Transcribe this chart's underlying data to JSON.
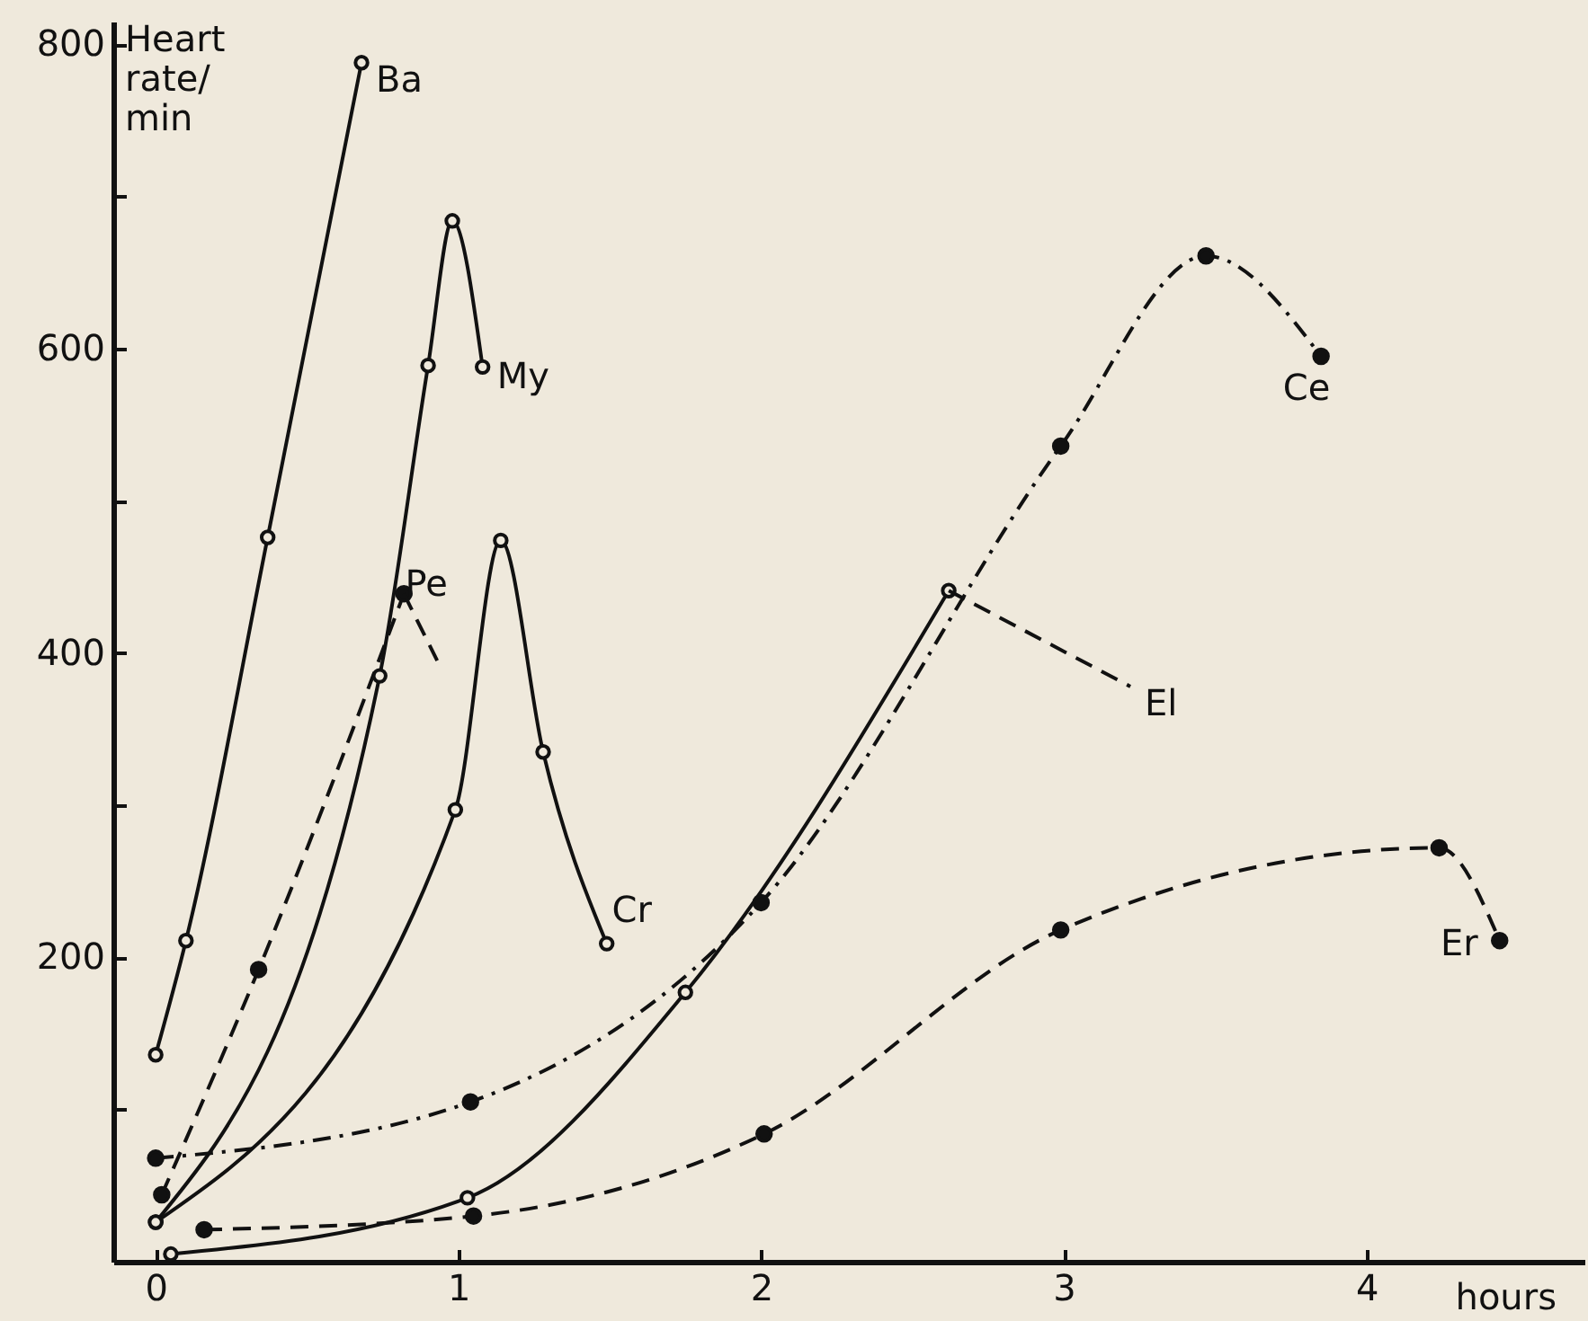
{
  "chart_data": {
    "type": "line",
    "xlabel": "hours",
    "ylabel": "Heart rate/ min",
    "xlim": [
      -0.14,
      4.72
    ],
    "ylim": [
      0,
      815
    ],
    "xticks": [
      0,
      1,
      2,
      3,
      4
    ],
    "yticks": [
      {
        "value": 100,
        "label": null
      },
      200,
      {
        "value": 300,
        "label": null
      },
      400,
      {
        "value": 500,
        "label": null
      },
      600,
      {
        "value": 700,
        "label": null
      },
      800
    ],
    "grid": false,
    "series": [
      {
        "name": "Ba",
        "color": "#111111",
        "line_style": "solid",
        "marker": "circle-open",
        "x": [
          0,
          0.1,
          0.37,
          0.68
        ],
        "values": [
          136,
          211,
          476,
          788
        ]
      },
      {
        "name": "My",
        "color": "#111111",
        "line_style": "solid",
        "marker": "circle-open",
        "x": [
          0,
          0.74,
          0.9,
          0.98,
          1.08
        ],
        "values": [
          26,
          385,
          589,
          684,
          588
        ]
      },
      {
        "color": "#111111",
        "line_style": "dashed",
        "marker": "circle",
        "x": [
          0.02,
          0.34,
          0.82
        ],
        "values": [
          44,
          192,
          439
        ]
      },
      {
        "name": "Pe",
        "color": "#111111",
        "line_style": "dashed",
        "marker": "none",
        "x": [
          0.82,
          0.93
        ],
        "values": [
          439,
          395
        ]
      },
      {
        "name": "Cr",
        "color": "#111111",
        "line_style": "solid",
        "marker": "circle-open",
        "x": [
          0,
          0.99,
          1.14,
          1.28,
          1.49
        ],
        "values": [
          26,
          297,
          474,
          335,
          209
        ]
      },
      {
        "color": "#111111",
        "line_style": "solid",
        "marker": "circle-open",
        "x": [
          0.05,
          1.03,
          1.75,
          2.62
        ],
        "values": [
          5,
          42,
          177,
          441
        ]
      },
      {
        "name": "El",
        "color": "#111111",
        "line_style": "dashed",
        "marker": "none",
        "x": [
          2.62,
          3.22
        ],
        "values": [
          441,
          378
        ]
      },
      {
        "name": "Ce",
        "color": "#111111",
        "line_style": "dashdot",
        "marker": "circle",
        "x": [
          0,
          1.04,
          2.0,
          2.99,
          3.47,
          3.85
        ],
        "values": [
          68,
          105,
          236,
          536,
          661,
          595
        ]
      },
      {
        "name": "Er",
        "color": "#111111",
        "line_style": "dashed",
        "marker": "circle",
        "x": [
          0.16,
          1.05,
          2.01,
          2.99,
          4.24,
          4.44
        ],
        "values": [
          21,
          30,
          84,
          218,
          272,
          211
        ]
      }
    ]
  }
}
